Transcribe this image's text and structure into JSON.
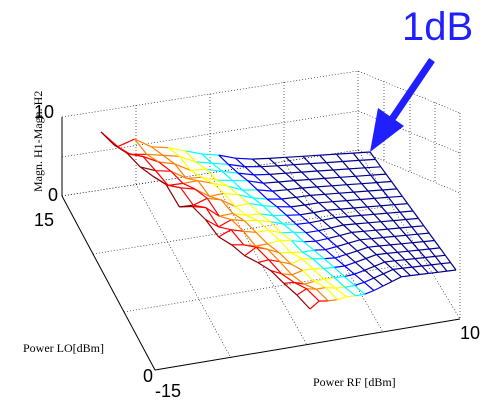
{
  "chart_data": {
    "type": "surface",
    "xlabel": "Power RF [dBm]",
    "ylabel": "Power LO[dBm]",
    "zlabel": "Magn. H1-Magn. H2",
    "x_ticks": [
      "-15",
      "10"
    ],
    "y_ticks": [
      "0",
      "15"
    ],
    "z_ticks": [
      "0",
      "10"
    ],
    "xlim": [
      -15,
      10
    ],
    "ylim": [
      0,
      15
    ],
    "zlim": [
      0,
      10
    ],
    "grid": true,
    "mesh_size": 16,
    "colormap": [
      "#00008f",
      "#0000ff",
      "#00ffff",
      "#ffff00",
      "#ff8000",
      "#ff0000",
      "#8f0000"
    ],
    "annotation": {
      "text": "1dB",
      "arrow_color": "#1f1fff"
    }
  }
}
